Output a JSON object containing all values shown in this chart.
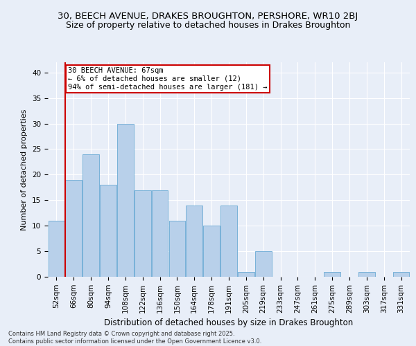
{
  "title": "30, BEECH AVENUE, DRAKES BROUGHTON, PERSHORE, WR10 2BJ",
  "subtitle": "Size of property relative to detached houses in Drakes Broughton",
  "xlabel": "Distribution of detached houses by size in Drakes Broughton",
  "ylabel": "Number of detached properties",
  "categories": [
    "52sqm",
    "66sqm",
    "80sqm",
    "94sqm",
    "108sqm",
    "122sqm",
    "136sqm",
    "150sqm",
    "164sqm",
    "178sqm",
    "191sqm",
    "205sqm",
    "219sqm",
    "233sqm",
    "247sqm",
    "261sqm",
    "275sqm",
    "289sqm",
    "303sqm",
    "317sqm",
    "331sqm"
  ],
  "values": [
    11,
    19,
    24,
    18,
    30,
    17,
    17,
    11,
    14,
    10,
    14,
    1,
    5,
    0,
    0,
    0,
    1,
    0,
    1,
    0,
    1
  ],
  "bar_color": "#B8D0EA",
  "bar_edge_color": "#6AAAD4",
  "highlight_index": 1,
  "highlight_color": "#CC0000",
  "annotation_text": "30 BEECH AVENUE: 67sqm\n← 6% of detached houses are smaller (12)\n94% of semi-detached houses are larger (181) →",
  "ylim": [
    0,
    42
  ],
  "yticks": [
    0,
    5,
    10,
    15,
    20,
    25,
    30,
    35,
    40
  ],
  "background_color": "#E8EEF8",
  "grid_color": "#FFFFFF",
  "footer": "Contains HM Land Registry data © Crown copyright and database right 2025.\nContains public sector information licensed under the Open Government Licence v3.0.",
  "title_fontsize": 9.5,
  "subtitle_fontsize": 9,
  "xlabel_fontsize": 8.5,
  "ylabel_fontsize": 8,
  "tick_fontsize": 7.5,
  "footer_fontsize": 6,
  "annot_fontsize": 7.5
}
